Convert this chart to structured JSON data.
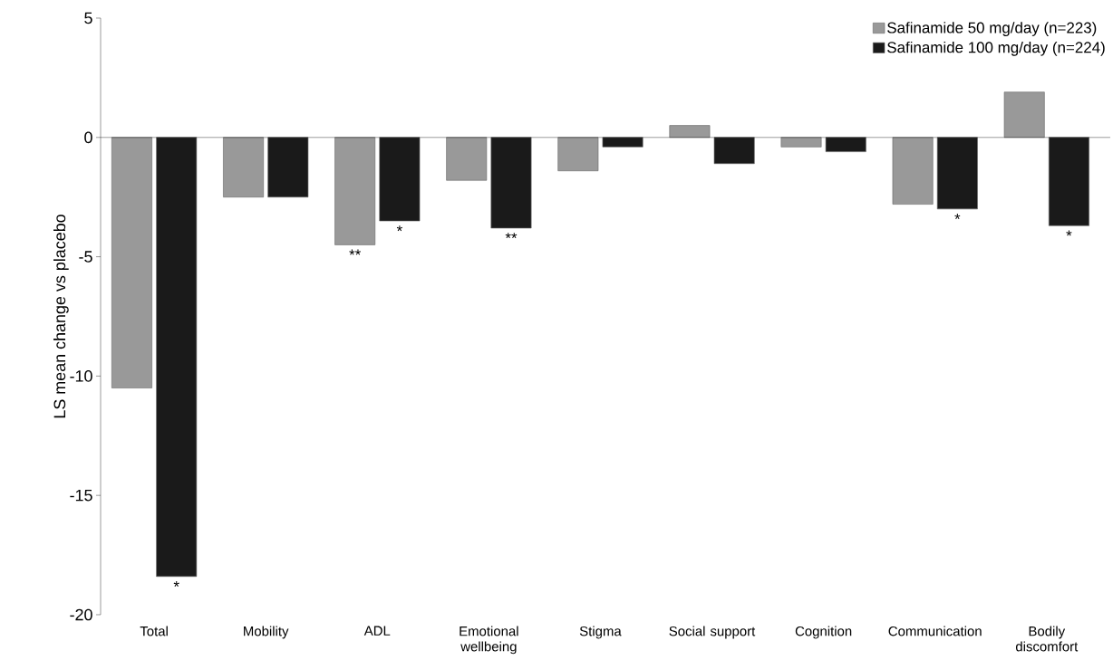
{
  "chart_data": {
    "type": "bar",
    "ylabel": "LS mean change vs placebo",
    "categories": [
      "Total",
      "Mobility",
      "ADL",
      "Emotional wellbeing",
      "Stigma",
      "Social support",
      "Cognition",
      "Communication",
      "Bodily discomfort"
    ],
    "series": [
      {
        "name": "Safinamide 50 mg/day (n=223)",
        "color": "#999999",
        "values": [
          -10.5,
          -2.5,
          -4.5,
          -1.8,
          -1.4,
          0.5,
          -0.4,
          -2.8,
          1.9
        ]
      },
      {
        "name": "Safinamide 100 mg/day (n=224)",
        "color": "#1a1a1a",
        "values": [
          -18.4,
          -2.5,
          -3.5,
          -3.8,
          -0.4,
          -1.1,
          -0.6,
          -3.0,
          -3.7
        ]
      }
    ],
    "ylim": [
      -20,
      5
    ],
    "yticks": [
      -20,
      -15,
      -10,
      -5,
      0,
      5
    ],
    "legend": "top right",
    "annotations": [
      {
        "text": "*",
        "x": "Total",
        "y": -18.4
      },
      {
        "text": "**",
        "x": "ADL",
        "y": -4.5
      },
      {
        "text": "*",
        "x": "ADL",
        "y": -3.5
      },
      {
        "text": "**",
        "x": "Emotional wellbeing",
        "y": -3.8
      },
      {
        "text": "*",
        "x": "Communication",
        "y": -3.0
      },
      {
        "text": "*",
        "x": "Bodily discomfort",
        "y": -3.7
      }
    ]
  }
}
